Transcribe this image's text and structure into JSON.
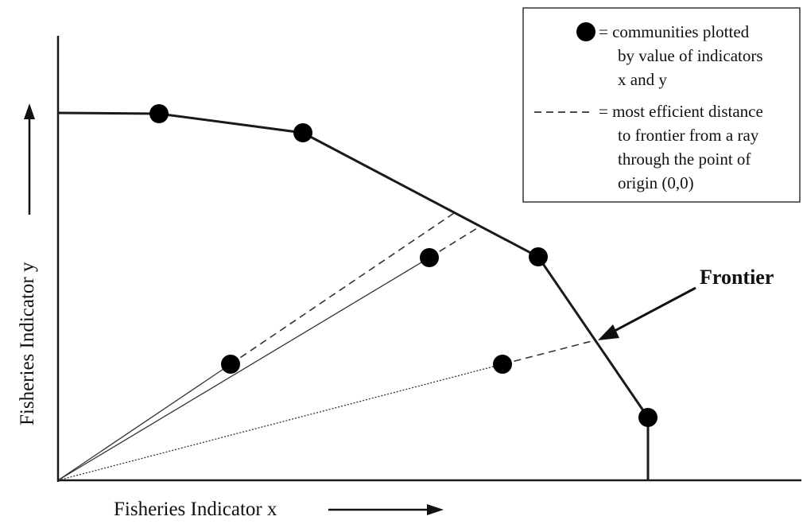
{
  "diagram": {
    "axis_x_label": "Fisheries Indicator x",
    "axis_y_label": "Fisheries Indicator y",
    "frontier_label": "Frontier",
    "legend": {
      "dot_entry": [
        "= communities plotted",
        "by value of indicators",
        "x and y"
      ],
      "dash_entry": [
        "= most efficient distance",
        "to frontier from a ray",
        "through the point of",
        "origin (0,0)"
      ]
    }
  },
  "colors": {
    "line": "#1a1a1a",
    "dot": "#000000",
    "background": "#ffffff"
  }
}
